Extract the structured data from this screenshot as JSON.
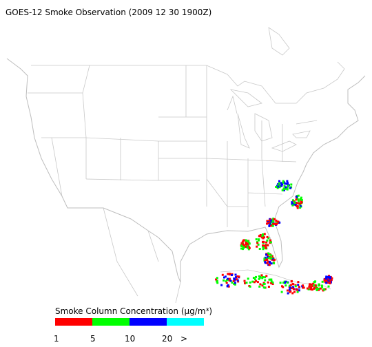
{
  "title": "GOES-12 Smoke Observation (2009 12 30  1900Z)",
  "legend": {
    "label": "Smoke Column Concentration (μg/m³)",
    "colors": [
      "#ff0000",
      "#00ff00",
      "#0000ff",
      "#00ffff"
    ],
    "tick_labels": [
      "1",
      "5",
      "10",
      "20",
      ">"
    ]
  }
}
